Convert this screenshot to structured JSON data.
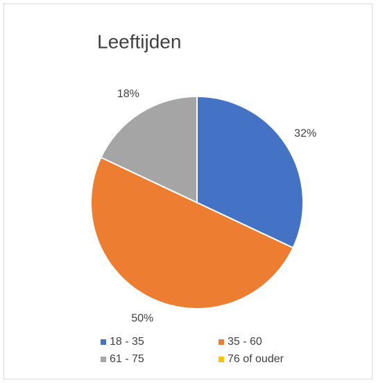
{
  "chart_data": {
    "type": "pie",
    "title": "Leeftijden",
    "categories": [
      "18 - 35",
      "35 - 60",
      "61 - 75",
      "76 of ouder"
    ],
    "values": [
      32,
      50,
      18,
      0
    ],
    "value_labels": [
      "32%",
      "50%",
      "18%",
      null
    ],
    "colors": [
      "#4472c4",
      "#ed7d31",
      "#a5a5a5",
      "#ffc000"
    ],
    "legend": "bottom"
  }
}
